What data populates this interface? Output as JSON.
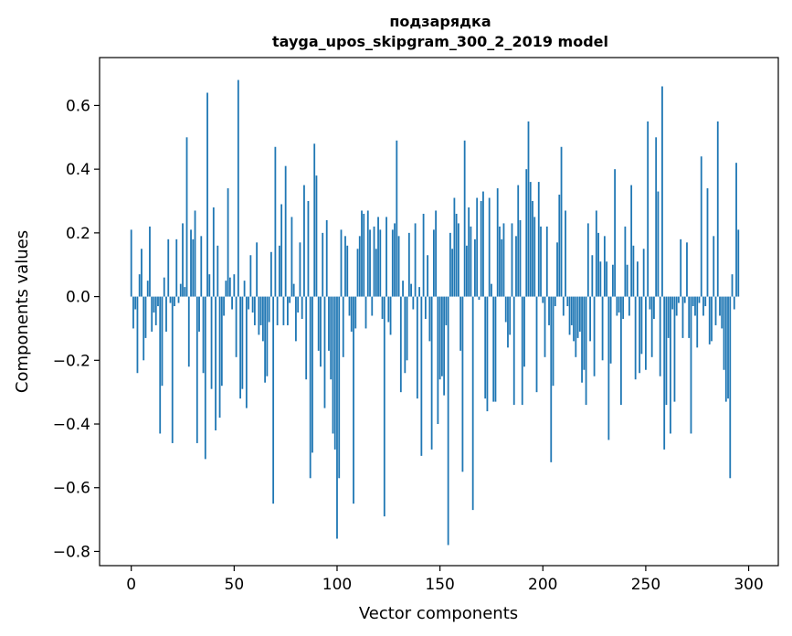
{
  "chart_data": {
    "type": "bar",
    "title": "подзарядка",
    "subtitle": "tayga_upos_skipgram_300_2_2019 model",
    "xlabel": "Vector components",
    "ylabel": "Components values",
    "xlim": [
      -15.4,
      314.4
    ],
    "ylim": [
      -0.8446,
      0.7504
    ],
    "xticks": [
      0,
      50,
      100,
      150,
      200,
      250,
      300
    ],
    "xtick_labels": [
      "0",
      "50",
      "100",
      "150",
      "200",
      "250",
      "300"
    ],
    "yticks": [
      -0.8,
      -0.6,
      -0.4,
      -0.2,
      0.0,
      0.2,
      0.4,
      0.6
    ],
    "ytick_labels": [
      "−0.8",
      "−0.6",
      "−0.4",
      "−0.2",
      "0.0",
      "0.2",
      "0.4",
      "0.6"
    ],
    "bar_color": "#1f77b4",
    "values": [
      0.21,
      -0.1,
      -0.04,
      -0.24,
      0.07,
      0.15,
      -0.2,
      -0.13,
      0.05,
      0.22,
      -0.11,
      -0.05,
      -0.09,
      -0.03,
      -0.43,
      -0.28,
      0.06,
      -0.11,
      0.18,
      -0.02,
      -0.46,
      -0.03,
      0.18,
      -0.02,
      0.04,
      0.23,
      0.03,
      0.5,
      -0.22,
      0.21,
      0.18,
      0.27,
      -0.46,
      -0.11,
      0.19,
      -0.24,
      -0.51,
      0.64,
      0.07,
      -0.29,
      0.28,
      -0.42,
      0.16,
      -0.38,
      -0.28,
      -0.06,
      0.05,
      0.34,
      0.06,
      -0.04,
      0.07,
      -0.19,
      0.68,
      -0.32,
      -0.29,
      0.05,
      -0.35,
      -0.04,
      0.13,
      -0.05,
      -0.09,
      0.17,
      -0.12,
      -0.09,
      -0.14,
      -0.27,
      -0.25,
      -0.08,
      0.14,
      -0.65,
      0.47,
      -0.09,
      0.16,
      0.29,
      -0.09,
      0.41,
      -0.09,
      -0.02,
      0.25,
      0.04,
      -0.14,
      -0.05,
      0.17,
      -0.07,
      0.35,
      -0.26,
      0.3,
      -0.57,
      -0.49,
      0.48,
      0.38,
      -0.17,
      -0.22,
      0.2,
      -0.35,
      0.24,
      -0.17,
      -0.26,
      -0.43,
      -0.48,
      -0.76,
      -0.57,
      0.21,
      -0.19,
      0.19,
      0.16,
      -0.06,
      -0.11,
      -0.65,
      -0.1,
      0.15,
      0.19,
      0.27,
      0.26,
      -0.1,
      0.27,
      0.21,
      -0.06,
      0.22,
      0.15,
      0.25,
      0.21,
      -0.07,
      -0.69,
      0.25,
      -0.08,
      -0.12,
      0.21,
      0.23,
      0.49,
      0.19,
      -0.3,
      0.05,
      -0.24,
      -0.2,
      0.2,
      0.04,
      -0.04,
      0.23,
      -0.32,
      0.03,
      -0.5,
      0.26,
      -0.07,
      0.13,
      -0.14,
      -0.48,
      0.21,
      0.27,
      -0.4,
      -0.26,
      -0.25,
      -0.31,
      -0.09,
      -0.78,
      0.2,
      0.15,
      0.31,
      0.26,
      0.23,
      -0.17,
      -0.55,
      0.49,
      0.16,
      0.28,
      0.22,
      -0.67,
      0.18,
      0.31,
      -0.01,
      0.3,
      0.33,
      -0.32,
      -0.36,
      0.31,
      0.04,
      -0.33,
      -0.33,
      0.34,
      0.22,
      0.18,
      0.23,
      -0.08,
      -0.16,
      -0.12,
      0.23,
      -0.34,
      0.19,
      0.35,
      0.24,
      -0.34,
      -0.22,
      0.4,
      0.55,
      0.36,
      0.3,
      0.25,
      -0.3,
      0.36,
      0.22,
      -0.02,
      -0.19,
      0.22,
      -0.09,
      -0.52,
      -0.28,
      -0.03,
      0.17,
      0.32,
      0.47,
      -0.06,
      0.27,
      -0.03,
      -0.12,
      -0.09,
      -0.14,
      -0.19,
      -0.13,
      -0.11,
      -0.27,
      -0.23,
      -0.34,
      0.23,
      -0.14,
      0.13,
      -0.25,
      0.27,
      0.2,
      0.11,
      -0.2,
      0.19,
      0.11,
      -0.45,
      -0.21,
      0.1,
      0.4,
      -0.06,
      -0.05,
      -0.34,
      -0.07,
      0.22,
      0.1,
      -0.06,
      0.35,
      0.16,
      -0.26,
      0.11,
      -0.24,
      -0.18,
      0.15,
      -0.23,
      0.55,
      -0.04,
      -0.19,
      -0.07,
      0.5,
      0.33,
      -0.25,
      0.66,
      -0.48,
      -0.34,
      -0.13,
      -0.43,
      -0.04,
      -0.33,
      -0.06,
      -0.02,
      0.18,
      -0.13,
      -0.02,
      0.17,
      -0.13,
      -0.43,
      -0.03,
      -0.06,
      -0.16,
      -0.02,
      0.44,
      -0.06,
      -0.03,
      0.34,
      -0.15,
      -0.14,
      0.19,
      -0.09,
      0.55,
      -0.06,
      -0.1,
      -0.23,
      -0.33,
      -0.32,
      -0.57,
      0.07,
      -0.04,
      0.42,
      0.21
    ]
  }
}
